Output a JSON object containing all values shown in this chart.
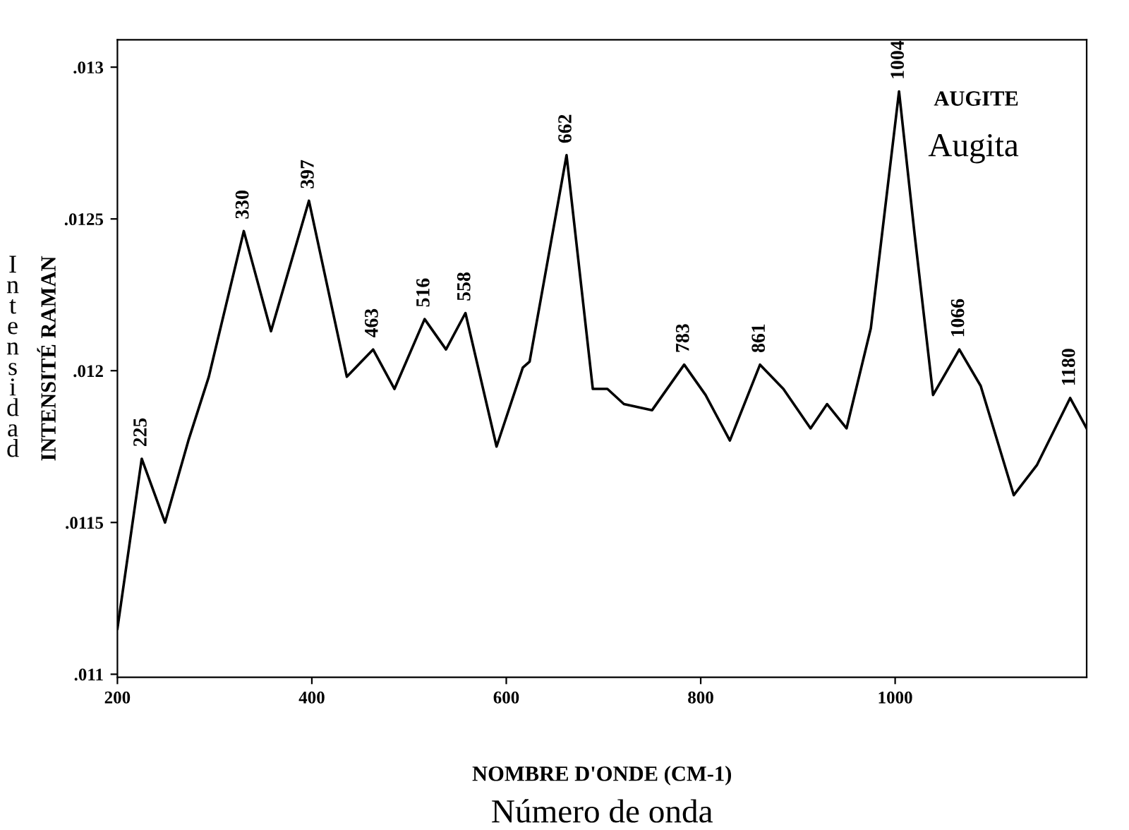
{
  "chart_data": {
    "type": "line",
    "xlabel": "NOMBRE D'ONDE (CM-1)",
    "ylabel": "INTENSITÉ RAMAN",
    "x": [
      200,
      225,
      249,
      273,
      294,
      330,
      358,
      397,
      436,
      463,
      485,
      516,
      538,
      558,
      590,
      617,
      624,
      662,
      689,
      704,
      721,
      750,
      783,
      805,
      830,
      861,
      885,
      913,
      930,
      950,
      975,
      1004,
      1020,
      1039,
      1066,
      1088,
      1122,
      1146,
      1180,
      1197
    ],
    "series": [
      {
        "color": "#000000",
        "values": [
          0.01115,
          0.01171,
          0.0115,
          0.01177,
          0.01198,
          0.01246,
          0.01213,
          0.01256,
          0.01198,
          0.01207,
          0.01194,
          0.01217,
          0.01207,
          0.01219,
          0.01175,
          0.01201,
          0.01203,
          0.01271,
          0.01194,
          0.01194,
          0.01189,
          0.01187,
          0.01202,
          0.01192,
          0.01177,
          0.01202,
          0.01194,
          0.01181,
          0.01189,
          0.01181,
          0.01214,
          0.01292,
          0.01245,
          0.01192,
          0.01207,
          0.01195,
          0.01159,
          0.01169,
          0.01191,
          0.01181
        ]
      }
    ],
    "xlim": [
      200,
      1197
    ],
    "ylim": [
      0.01099,
      0.01309
    ],
    "xticks": [
      200,
      400,
      600,
      800,
      1000
    ],
    "yticks": [
      {
        "value": 0.011,
        "label": ".011"
      },
      {
        "value": 0.0115,
        "label": ".0115"
      },
      {
        "value": 0.012,
        "label": ".012"
      },
      {
        "value": 0.0125,
        "label": ".0125"
      },
      {
        "value": 0.013,
        "label": ".013"
      }
    ],
    "grid": false,
    "legend": false,
    "marker": "none",
    "line_style": "solid",
    "annotations": [
      {
        "text": "225",
        "x": 225,
        "y": 0.01171
      },
      {
        "text": "330",
        "x": 330,
        "y": 0.01246
      },
      {
        "text": "397",
        "x": 397,
        "y": 0.01256
      },
      {
        "text": "463",
        "x": 463,
        "y": 0.01207
      },
      {
        "text": "516",
        "x": 516,
        "y": 0.01217
      },
      {
        "text": "558",
        "x": 558,
        "y": 0.01219
      },
      {
        "text": "662",
        "x": 662,
        "y": 0.01271
      },
      {
        "text": "783",
        "x": 783,
        "y": 0.01202
      },
      {
        "text": "861",
        "x": 861,
        "y": 0.01202
      },
      {
        "text": "1004",
        "x": 1004,
        "y": 0.01292
      },
      {
        "text": "1066",
        "x": 1066,
        "y": 0.01207
      },
      {
        "text": "1180",
        "x": 1180,
        "y": 0.01191
      },
      "AUGITE",
      "Augita",
      "Intensidad",
      "Número de onda"
    ]
  }
}
